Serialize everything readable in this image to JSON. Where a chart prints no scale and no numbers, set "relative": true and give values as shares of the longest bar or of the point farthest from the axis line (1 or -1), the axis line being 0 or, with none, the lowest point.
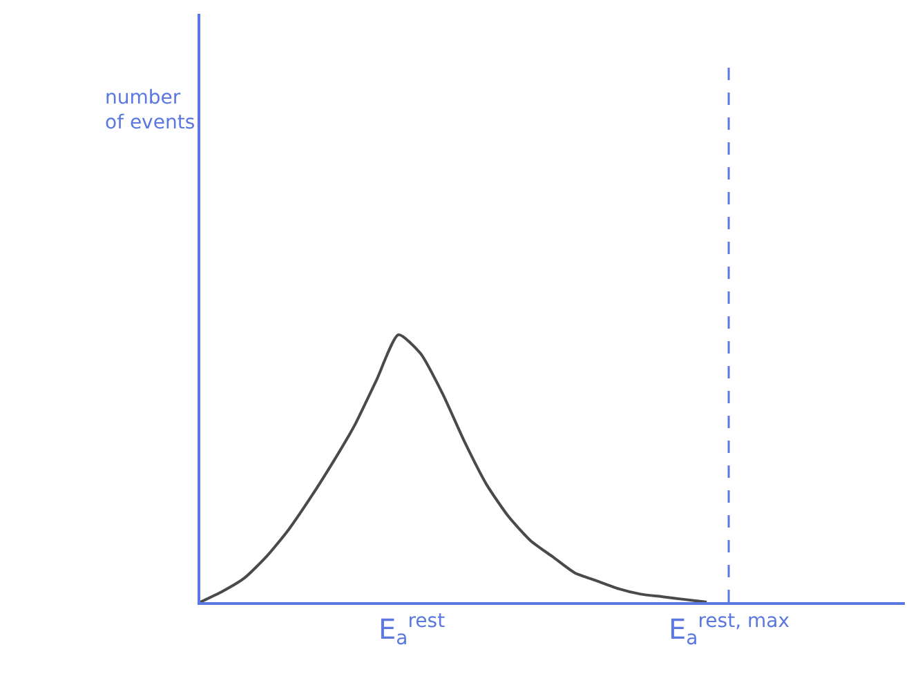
{
  "chart_data": {
    "type": "line",
    "relative": true,
    "xlabel": "E$_{a}$$^{rest}$",
    "annotations": [
      "number of events",
      "E$_{a}$$^{rest, max}$"
    ],
    "categories": [
      null,
      null,
      null,
      null,
      null,
      null,
      null,
      null,
      null,
      null,
      null,
      null,
      null,
      null,
      null,
      null,
      null,
      null,
      null,
      null,
      null,
      null,
      null,
      null,
      null
    ],
    "series": [
      {
        "color": "#4a4a4a",
        "values": [
          0,
          0.04,
          0.09,
          0.17,
          0.27,
          0.39,
          0.52,
          0.66,
          0.83,
          1.0,
          0.93,
          0.78,
          0.6,
          0.44,
          0.32,
          0.23,
          0.17,
          0.11,
          0.08,
          0.05,
          0.03,
          0.02,
          0.01,
          0,
          null
        ]
      }
    ],
    "marker": "none",
    "line_style": "solid"
  }
}
